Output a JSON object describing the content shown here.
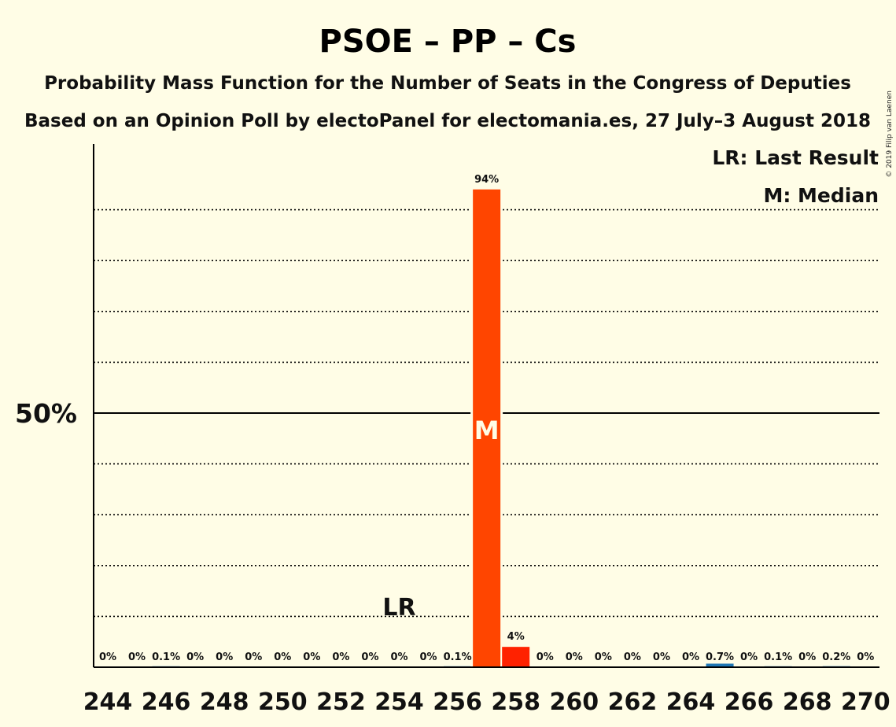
{
  "header": {
    "title": "PSOE – PP – Cs",
    "subtitle1": "Probability Mass Function for the Number of Seats in the Congress of Deputies",
    "subtitle2": "Based on an Opinion Poll by electoPanel for electomania.es, 27 July–3 August 2018"
  },
  "legend": {
    "lr": "LR: Last Result",
    "median": "M: Median"
  },
  "copyright": "© 2019 Filip van Laenen",
  "chart_data": {
    "type": "bar",
    "x": [
      244,
      245,
      246,
      247,
      248,
      249,
      250,
      251,
      252,
      253,
      254,
      255,
      256,
      257,
      258,
      259,
      260,
      261,
      262,
      263,
      264,
      265,
      266,
      267,
      268,
      269,
      270
    ],
    "values": [
      0,
      0,
      0.1,
      0,
      0,
      0,
      0,
      0,
      0,
      0,
      0,
      0,
      0.1,
      94,
      4,
      0,
      0,
      0,
      0,
      0,
      0,
      0.7,
      0,
      0.1,
      0,
      0.2,
      0
    ],
    "labels": [
      "0%",
      "0%",
      "0.1%",
      "0%",
      "0%",
      "0%",
      "0%",
      "0%",
      "0%",
      "0%",
      "0%",
      "0%",
      "0.1%",
      "94%",
      "4%",
      "0%",
      "0%",
      "0%",
      "0%",
      "0%",
      "0%",
      "0.7%",
      "0%",
      "0.1%",
      "0%",
      "0.2%",
      "0%"
    ],
    "x_tick_labels": [
      "244",
      "246",
      "248",
      "250",
      "252",
      "254",
      "256",
      "258",
      "260",
      "262",
      "264",
      "266",
      "268",
      "270"
    ],
    "y_tick_label": "50%",
    "ylim": [
      0,
      100
    ],
    "grid": "dotted every 10%, solid at 50%",
    "last_result_seat": 254,
    "last_result_label": "LR",
    "median_seat": 257,
    "median_label": "M",
    "colors": {
      "bar_main": "#FF4500",
      "bar_second": "#FF2200",
      "bar_other": "#1F77B4",
      "background": "#FFFDE6"
    }
  }
}
